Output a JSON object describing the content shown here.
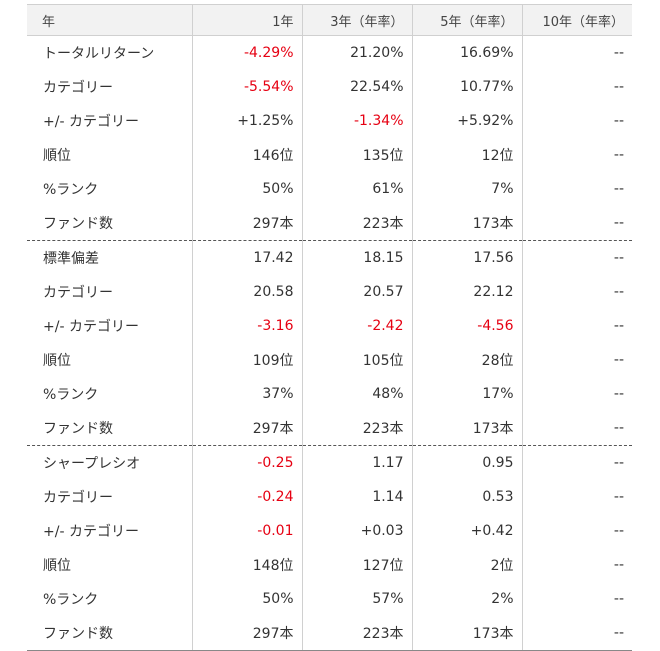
{
  "header": [
    "年",
    "1年",
    "3年（年率）",
    "5年（年率）",
    "10年（年率）"
  ],
  "negative_color": "#e60012",
  "groups": [
    {
      "rows": [
        {
          "label": "トータルリターン",
          "values": [
            "-4.29%",
            "21.20%",
            "16.69%",
            "--"
          ],
          "neg": [
            true,
            false,
            false,
            false
          ]
        },
        {
          "label": "カテゴリー",
          "values": [
            "-5.54%",
            "22.54%",
            "10.77%",
            "--"
          ],
          "neg": [
            true,
            false,
            false,
            false
          ]
        },
        {
          "label": "+/- カテゴリー",
          "values": [
            "+1.25%",
            "-1.34%",
            "+5.92%",
            "--"
          ],
          "neg": [
            false,
            true,
            false,
            false
          ]
        },
        {
          "label": "順位",
          "values": [
            "146位",
            "135位",
            "12位",
            "--"
          ],
          "neg": [
            false,
            false,
            false,
            false
          ]
        },
        {
          "label": "%ランク",
          "values": [
            "50%",
            "61%",
            "7%",
            "--"
          ],
          "neg": [
            false,
            false,
            false,
            false
          ]
        },
        {
          "label": "ファンド数",
          "values": [
            "297本",
            "223本",
            "173本",
            "--"
          ],
          "neg": [
            false,
            false,
            false,
            false
          ]
        }
      ]
    },
    {
      "rows": [
        {
          "label": "標準偏差",
          "values": [
            "17.42",
            "18.15",
            "17.56",
            "--"
          ],
          "neg": [
            false,
            false,
            false,
            false
          ]
        },
        {
          "label": "カテゴリー",
          "values": [
            "20.58",
            "20.57",
            "22.12",
            "--"
          ],
          "neg": [
            false,
            false,
            false,
            false
          ]
        },
        {
          "label": "+/- カテゴリー",
          "values": [
            "-3.16",
            "-2.42",
            "-4.56",
            "--"
          ],
          "neg": [
            true,
            true,
            true,
            false
          ]
        },
        {
          "label": "順位",
          "values": [
            "109位",
            "105位",
            "28位",
            "--"
          ],
          "neg": [
            false,
            false,
            false,
            false
          ]
        },
        {
          "label": "%ランク",
          "values": [
            "37%",
            "48%",
            "17%",
            "--"
          ],
          "neg": [
            false,
            false,
            false,
            false
          ]
        },
        {
          "label": "ファンド数",
          "values": [
            "297本",
            "223本",
            "173本",
            "--"
          ],
          "neg": [
            false,
            false,
            false,
            false
          ]
        }
      ]
    },
    {
      "rows": [
        {
          "label": "シャープレシオ",
          "values": [
            "-0.25",
            "1.17",
            "0.95",
            "--"
          ],
          "neg": [
            true,
            false,
            false,
            false
          ]
        },
        {
          "label": "カテゴリー",
          "values": [
            "-0.24",
            "1.14",
            "0.53",
            "--"
          ],
          "neg": [
            true,
            false,
            false,
            false
          ]
        },
        {
          "label": "+/- カテゴリー",
          "values": [
            "-0.01",
            "+0.03",
            "+0.42",
            "--"
          ],
          "neg": [
            true,
            false,
            false,
            false
          ]
        },
        {
          "label": "順位",
          "values": [
            "148位",
            "127位",
            "2位",
            "--"
          ],
          "neg": [
            false,
            false,
            false,
            false
          ]
        },
        {
          "label": "%ランク",
          "values": [
            "50%",
            "57%",
            "2%",
            "--"
          ],
          "neg": [
            false,
            false,
            false,
            false
          ]
        },
        {
          "label": "ファンド数",
          "values": [
            "297本",
            "223本",
            "173本",
            "--"
          ],
          "neg": [
            false,
            false,
            false,
            false
          ]
        }
      ]
    }
  ]
}
